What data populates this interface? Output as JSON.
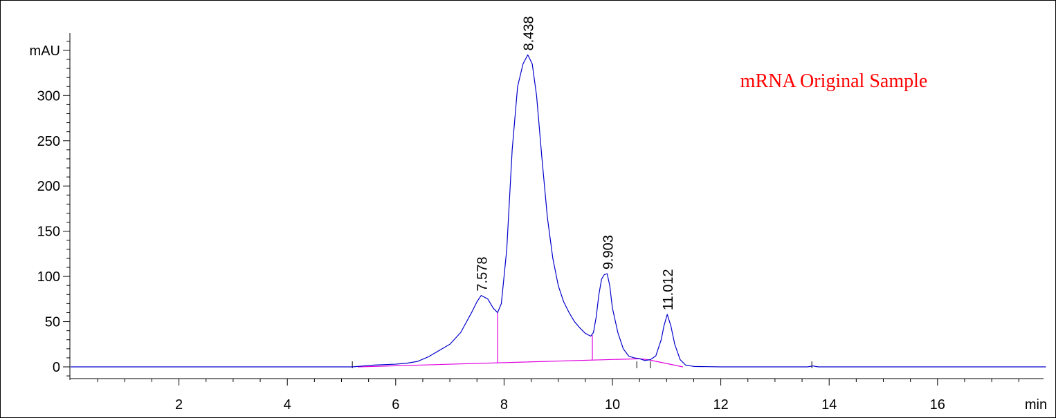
{
  "chart_data": {
    "type": "line",
    "title": "",
    "annotation": "mRNA Original Sample",
    "annotation_color": "#ff0000",
    "xlabel": "min",
    "ylabel": "mAU",
    "xlim": [
      0,
      18
    ],
    "ylim": [
      -10,
      360
    ],
    "x_ticks": [
      2,
      4,
      6,
      8,
      10,
      12,
      14,
      16
    ],
    "x_minor_step": 0.5,
    "y_ticks": [
      0,
      50,
      100,
      150,
      200,
      250,
      300
    ],
    "y_minor_step": 10,
    "grid": false,
    "series": [
      {
        "color": "#0000cc",
        "x": [
          0,
          5.2,
          5.4,
          5.6,
          5.8,
          6.0,
          6.2,
          6.4,
          6.6,
          6.8,
          7.0,
          7.2,
          7.4,
          7.5,
          7.578,
          7.7,
          7.8,
          7.88,
          7.95,
          8.05,
          8.15,
          8.25,
          8.35,
          8.438,
          8.52,
          8.6,
          8.7,
          8.8,
          8.9,
          9.0,
          9.1,
          9.2,
          9.3,
          9.4,
          9.5,
          9.6,
          9.65,
          9.7,
          9.75,
          9.8,
          9.85,
          9.903,
          9.95,
          10.0,
          10.1,
          10.2,
          10.3,
          10.4,
          10.5,
          10.6,
          10.7,
          10.8,
          10.9,
          10.95,
          11.012,
          11.08,
          11.15,
          11.25,
          11.35,
          11.5,
          12.0,
          13.6,
          13.7,
          13.8,
          18
        ],
        "y": [
          0,
          0,
          1,
          2,
          2.5,
          3,
          4,
          6,
          11,
          18,
          25,
          38,
          60,
          72,
          79,
          75,
          65,
          60,
          70,
          130,
          240,
          310,
          335,
          345,
          335,
          300,
          230,
          165,
          120,
          90,
          72,
          60,
          50,
          43,
          37,
          34,
          38,
          55,
          80,
          97,
          102,
          103,
          90,
          65,
          38,
          20,
          12,
          10,
          9,
          7,
          8,
          12,
          30,
          45,
          58,
          45,
          25,
          8,
          2,
          0.5,
          0,
          0,
          1,
          0,
          0
        ]
      }
    ],
    "peaks": [
      {
        "rt": "7.578",
        "x": 7.578,
        "y": 79
      },
      {
        "rt": "8.438",
        "x": 8.438,
        "y": 345
      },
      {
        "rt": "9.903",
        "x": 9.903,
        "y": 103
      },
      {
        "rt": "11.012",
        "x": 11.012,
        "y": 58
      }
    ],
    "baseline": {
      "color": "#e000e0",
      "x": [
        5.3,
        10.5,
        10.65,
        11.3
      ],
      "y": [
        0,
        9,
        8,
        0
      ]
    },
    "drop_lines": [
      {
        "x": 7.88,
        "y_from": 4.5,
        "y_to": 60
      },
      {
        "x": 9.63,
        "y_from": 8,
        "y_to": 35
      }
    ],
    "event_marks": [
      5.2,
      10.45,
      10.7,
      13.68
    ]
  }
}
